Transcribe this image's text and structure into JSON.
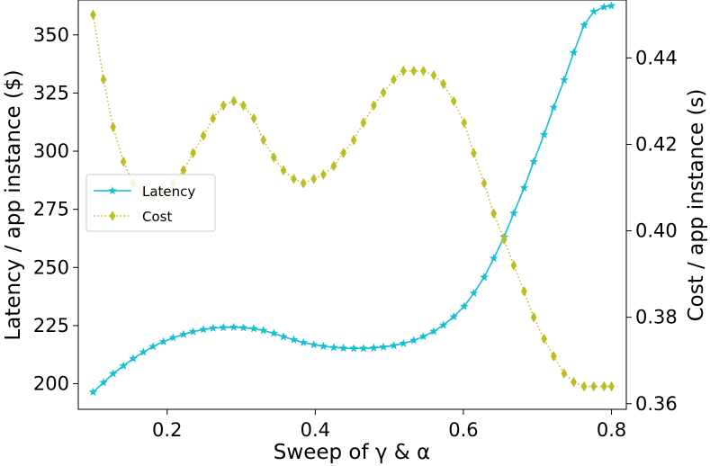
{
  "chart_data": {
    "type": "line",
    "title": "",
    "xlabel": "Sweep of γ & α",
    "ylabel_left": "Latency / app instance ($)",
    "ylabel_right": "Cost / app instance (s)",
    "xlim": [
      0.08,
      0.82
    ],
    "ylim_left": [
      189,
      365
    ],
    "ylim_right": [
      0.3587,
      0.4534
    ],
    "xticks": [
      0.2,
      0.4,
      0.6,
      0.8
    ],
    "xtick_labels": [
      "0.2",
      "0.4",
      "0.6",
      "0.8"
    ],
    "yticks_left": [
      200,
      225,
      250,
      275,
      300,
      325,
      350
    ],
    "ytick_labels_left": [
      "200",
      "225",
      "250",
      "275",
      "300",
      "325",
      "350"
    ],
    "yticks_right": [
      0.36,
      0.38,
      0.4,
      0.42,
      0.44
    ],
    "ytick_labels_right": [
      "0.36",
      "0.38",
      "0.40",
      "0.42",
      "0.44"
    ],
    "grid": false,
    "legend_position": "center-left",
    "x": [
      0.1,
      0.114,
      0.127,
      0.141,
      0.154,
      0.168,
      0.181,
      0.195,
      0.208,
      0.222,
      0.235,
      0.249,
      0.262,
      0.276,
      0.29,
      0.303,
      0.317,
      0.33,
      0.344,
      0.357,
      0.371,
      0.384,
      0.398,
      0.411,
      0.425,
      0.438,
      0.452,
      0.465,
      0.479,
      0.492,
      0.506,
      0.519,
      0.533,
      0.546,
      0.56,
      0.573,
      0.587,
      0.601,
      0.614,
      0.628,
      0.641,
      0.655,
      0.668,
      0.682,
      0.695,
      0.709,
      0.722,
      0.736,
      0.749,
      0.763,
      0.776,
      0.79,
      0.8
    ],
    "series": [
      {
        "name": "Latency",
        "axis": "left",
        "color": "#17becf",
        "marker": "star",
        "linestyle": "solid",
        "values": [
          196.4,
          200.5,
          204.3,
          207.7,
          210.8,
          213.6,
          216.0,
          218.1,
          219.8,
          221.2,
          222.4,
          223.3,
          223.9,
          224.2,
          224.3,
          224.1,
          223.7,
          222.9,
          221.7,
          220.2,
          218.9,
          217.7,
          216.8,
          216.1,
          215.6,
          215.3,
          215.2,
          215.2,
          215.4,
          215.8,
          216.4,
          217.3,
          218.6,
          220.3,
          222.5,
          225.2,
          228.8,
          233.3,
          238.9,
          245.8,
          253.9,
          263.1,
          273.3,
          284.2,
          295.5,
          307.1,
          318.8,
          330.6,
          342.4,
          354.2,
          360.0,
          362.0,
          362.5
        ]
      },
      {
        "name": "Cost",
        "axis": "right",
        "color": "#bcbd22",
        "marker": "diamond",
        "linestyle": "dotted",
        "values": [
          0.45,
          0.435,
          0.424,
          0.416,
          0.411,
          0.409,
          0.408,
          0.409,
          0.411,
          0.414,
          0.418,
          0.422,
          0.426,
          0.429,
          0.43,
          0.429,
          0.426,
          0.421,
          0.417,
          0.414,
          0.412,
          0.411,
          0.412,
          0.413,
          0.415,
          0.418,
          0.421,
          0.425,
          0.429,
          0.432,
          0.435,
          0.437,
          0.437,
          0.437,
          0.436,
          0.434,
          0.43,
          0.425,
          0.418,
          0.411,
          0.404,
          0.398,
          0.392,
          0.386,
          0.38,
          0.375,
          0.371,
          0.367,
          0.365,
          0.364,
          0.364,
          0.364,
          0.364
        ]
      }
    ]
  }
}
